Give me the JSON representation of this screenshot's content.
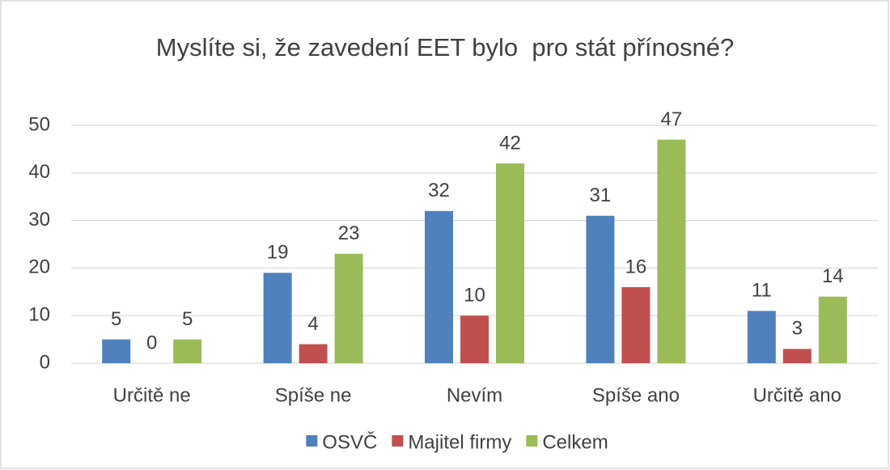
{
  "chart_data": {
    "type": "bar",
    "title": "Myslíte si, že zavedení EET bylo  pro stát přínosné?",
    "categories": [
      "Určitě ne",
      "Spíše ne",
      "Nevím",
      "Spíše ano",
      "Určitě ano"
    ],
    "series": [
      {
        "name": "OSVČ",
        "color": "#4f81bd",
        "values": [
          5,
          19,
          32,
          31,
          11
        ]
      },
      {
        "name": "Majitel firmy",
        "color": "#c0504d",
        "values": [
          0,
          4,
          10,
          16,
          3
        ]
      },
      {
        "name": "Celkem",
        "color": "#9bbb59",
        "values": [
          5,
          23,
          42,
          47,
          14
        ]
      }
    ],
    "ylim": [
      0,
      50
    ],
    "yticks": [
      0,
      10,
      20,
      30,
      40,
      50
    ],
    "grid": true,
    "legend": "bottom"
  }
}
